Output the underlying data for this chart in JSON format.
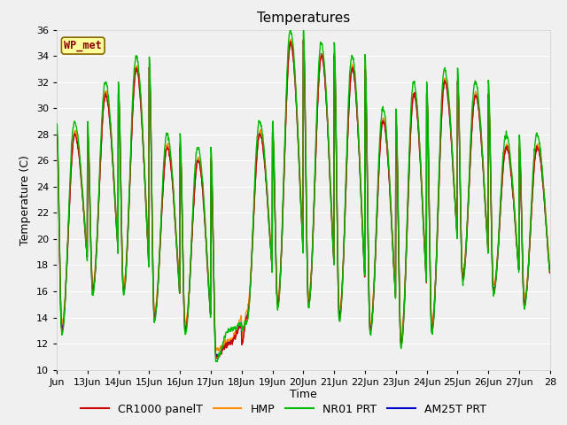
{
  "title": "Temperatures",
  "ylabel": "Temperature (C)",
  "xlabel": "Time",
  "ylim": [
    10,
    36
  ],
  "xlim_days": [
    12,
    28
  ],
  "tick_days": [
    12,
    13,
    14,
    15,
    16,
    17,
    18,
    19,
    20,
    21,
    22,
    23,
    24,
    25,
    26,
    27,
    28
  ],
  "tick_labels": [
    "Jun",
    "13Jun",
    "14Jun",
    "15Jun",
    "16Jun",
    "17Jun",
    "18Jun",
    "19Jun",
    "20Jun",
    "21Jun",
    "22Jun",
    "23Jun",
    "24Jun",
    "25Jun",
    "26Jun",
    "27Jun",
    "28"
  ],
  "yticks": [
    10,
    12,
    14,
    16,
    18,
    20,
    22,
    24,
    26,
    28,
    30,
    32,
    34,
    36
  ],
  "plot_bg_color": "#f0f0f0",
  "fig_bg_color": "#f0f0f0",
  "line_colors": [
    "#cc0000",
    "#ff8c00",
    "#00bb00",
    "#0000cc"
  ],
  "line_labels": [
    "CR1000 panelT",
    "HMP",
    "NR01 PRT",
    "AM25T PRT"
  ],
  "line_width": 1.0,
  "grid_color": "#ffffff",
  "watermark_text": "WP_met",
  "watermark_bg": "#ffff99",
  "watermark_border": "#886600",
  "title_fontsize": 11,
  "axis_label_fontsize": 9,
  "tick_fontsize": 8,
  "legend_fontsize": 9
}
